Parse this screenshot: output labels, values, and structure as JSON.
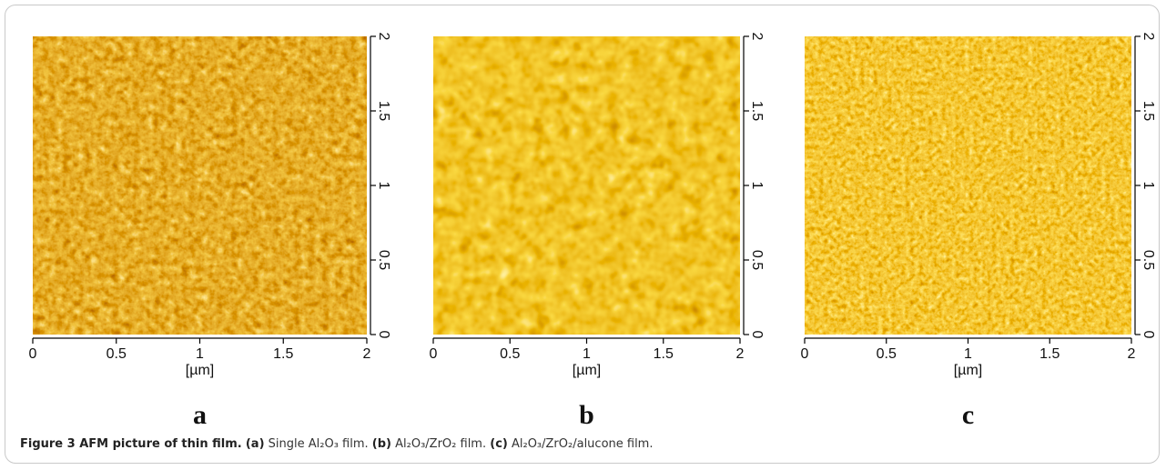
{
  "panels": [
    {
      "label": "a",
      "xlabel": "[µm]",
      "xlim": [
        0,
        2
      ],
      "ylim": [
        0,
        2
      ],
      "xticks": [
        0,
        0.5,
        1,
        1.5,
        2
      ],
      "yticks": [
        0,
        0.5,
        1,
        1.5,
        2
      ]
    },
    {
      "label": "b",
      "xlabel": "[µm]",
      "xlim": [
        0,
        2
      ],
      "ylim": [
        0,
        2
      ],
      "xticks": [
        0,
        0.5,
        1,
        1.5,
        2
      ],
      "yticks": [
        0,
        0.5,
        1,
        1.5,
        2
      ]
    },
    {
      "label": "c",
      "xlabel": "[µm]",
      "xlim": [
        0,
        2
      ],
      "ylim": [
        0,
        2
      ],
      "xticks": [
        0,
        0.5,
        1,
        1.5,
        2
      ],
      "yticks": [
        0,
        0.5,
        1,
        1.5,
        2
      ]
    }
  ],
  "caption": {
    "title": "Figure 3 AFM picture of thin film.",
    "items": [
      {
        "label": "(a)",
        "text": "Single Al₂O₃ film."
      },
      {
        "label": "(b)",
        "text": "Al₂O₃/ZrO₂ film."
      },
      {
        "label": "(c)",
        "text": "Al₂O₃/ZrO₂/alucone film."
      }
    ]
  }
}
